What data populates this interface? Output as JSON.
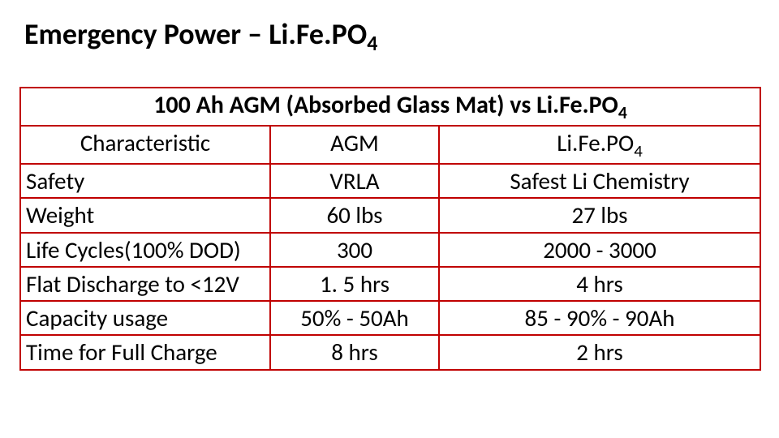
{
  "title_main": "Emergency Power – Li.Fe.PO",
  "title_sub": "4",
  "table": {
    "border_color": "#c00000",
    "background_color": "#ffffff",
    "font_family": "Calibri",
    "font_size_pt": 22,
    "caption_prefix": "100 Ah AGM (Absorbed Glass Mat) vs Li.Fe.PO",
    "caption_sub": "4",
    "columns": [
      "Characteristic",
      "AGM",
      "Li.Fe.PO"
    ],
    "col3_sub": "4",
    "rows": [
      {
        "c": "Safety",
        "a": "VRLA",
        "b": "Safest Li Chemistry"
      },
      {
        "c": "Weight",
        "a": "60 lbs",
        "b": "27 lbs"
      },
      {
        "c": "Life Cycles(100% DOD)",
        "a": "300",
        "b": "2000 - 3000"
      },
      {
        "c": "Flat Discharge to <12V",
        "a": "1. 5 hrs",
        "b": "4 hrs"
      },
      {
        "c": "Capacity usage",
        "a": "50% - 50Ah",
        "b": "85 - 90% - 90Ah"
      },
      {
        "c": "Time for Full Charge",
        "a": "8 hrs",
        "b": "2 hrs"
      }
    ]
  }
}
